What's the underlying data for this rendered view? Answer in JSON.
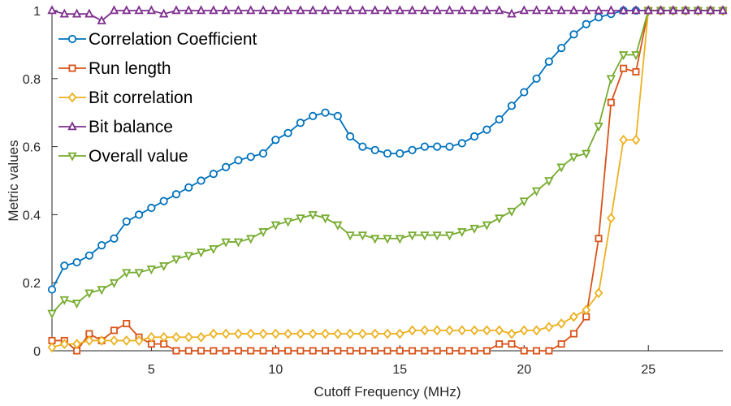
{
  "chart_data": {
    "type": "line",
    "xlabel": "Cutoff Frequency (MHz)",
    "ylabel": "Metric values",
    "xlim": [
      1,
      28
    ],
    "ylim": [
      0,
      1
    ],
    "xticks": [
      5,
      10,
      15,
      20,
      25
    ],
    "xtick_labels": [
      "5",
      "10",
      "15",
      "20",
      "25"
    ],
    "yticks": [
      0,
      0.2,
      0.4,
      0.6,
      0.8,
      1
    ],
    "ytick_labels": [
      "0",
      "0.2",
      "0.4",
      "0.6",
      "0.8",
      "1"
    ],
    "grid": false,
    "legend_position": "top-left",
    "series": [
      {
        "name": "Correlation Coefficient",
        "color": "#0072BD",
        "marker": "circle",
        "x": [
          1,
          1.5,
          2,
          2.5,
          3,
          3.5,
          4,
          4.5,
          5,
          5.5,
          6,
          6.5,
          7,
          7.5,
          8,
          8.5,
          9,
          9.5,
          10,
          10.5,
          11,
          11.5,
          12,
          12.5,
          13,
          13.5,
          14,
          14.5,
          15,
          15.5,
          16,
          16.5,
          17,
          17.5,
          18,
          18.5,
          19,
          19.5,
          20,
          20.5,
          21,
          21.5,
          22,
          22.5,
          23,
          23.5,
          24,
          24.5,
          25,
          25.5,
          26,
          26.5,
          27,
          27.5,
          28
        ],
        "values": [
          0.18,
          0.25,
          0.26,
          0.28,
          0.31,
          0.33,
          0.38,
          0.4,
          0.42,
          0.44,
          0.46,
          0.48,
          0.5,
          0.52,
          0.54,
          0.56,
          0.57,
          0.58,
          0.62,
          0.64,
          0.67,
          0.69,
          0.7,
          0.69,
          0.63,
          0.6,
          0.59,
          0.58,
          0.58,
          0.59,
          0.6,
          0.6,
          0.6,
          0.61,
          0.63,
          0.65,
          0.68,
          0.72,
          0.76,
          0.8,
          0.85,
          0.89,
          0.93,
          0.96,
          0.98,
          0.99,
          1.0,
          1.0,
          1.0,
          1.0,
          1.0,
          1.0,
          1.0,
          1.0,
          1.0
        ]
      },
      {
        "name": "Run length",
        "color": "#D95319",
        "marker": "square",
        "x": [
          1,
          1.5,
          2,
          2.5,
          3,
          3.5,
          4,
          4.5,
          5,
          5.5,
          6,
          6.5,
          7,
          7.5,
          8,
          8.5,
          9,
          9.5,
          10,
          10.5,
          11,
          11.5,
          12,
          12.5,
          13,
          13.5,
          14,
          14.5,
          15,
          15.5,
          16,
          16.5,
          17,
          17.5,
          18,
          18.5,
          19,
          19.5,
          20,
          20.5,
          21,
          21.5,
          22,
          22.5,
          23,
          23.5,
          24,
          24.5,
          25,
          25.5,
          26,
          26.5,
          27,
          27.5,
          28
        ],
        "values": [
          0.03,
          0.03,
          0.0,
          0.05,
          0.03,
          0.06,
          0.08,
          0.04,
          0.02,
          0.02,
          0.0,
          0.0,
          0.0,
          0.0,
          0.0,
          0.0,
          0.0,
          0.0,
          0.0,
          0.0,
          0.0,
          0.0,
          0.0,
          0.0,
          0.0,
          0.0,
          0.0,
          0.0,
          0.0,
          0.0,
          0.0,
          0.0,
          0.0,
          0.0,
          0.0,
          0.0,
          0.02,
          0.02,
          0.0,
          0.0,
          0.0,
          0.02,
          0.05,
          0.1,
          0.33,
          0.73,
          0.83,
          0.82,
          1.0,
          1.0,
          1.0,
          1.0,
          1.0,
          1.0,
          1.0
        ]
      },
      {
        "name": "Bit correlation",
        "color": "#EDB120",
        "marker": "diamond",
        "x": [
          1,
          1.5,
          2,
          2.5,
          3,
          3.5,
          4,
          4.5,
          5,
          5.5,
          6,
          6.5,
          7,
          7.5,
          8,
          8.5,
          9,
          9.5,
          10,
          10.5,
          11,
          11.5,
          12,
          12.5,
          13,
          13.5,
          14,
          14.5,
          15,
          15.5,
          16,
          16.5,
          17,
          17.5,
          18,
          18.5,
          19,
          19.5,
          20,
          20.5,
          21,
          21.5,
          22,
          22.5,
          23,
          23.5,
          24,
          24.5,
          25,
          25.5,
          26,
          26.5,
          27,
          27.5,
          28
        ],
        "values": [
          0.01,
          0.02,
          0.02,
          0.03,
          0.03,
          0.03,
          0.03,
          0.03,
          0.04,
          0.04,
          0.04,
          0.04,
          0.04,
          0.05,
          0.05,
          0.05,
          0.05,
          0.05,
          0.05,
          0.05,
          0.05,
          0.05,
          0.05,
          0.05,
          0.05,
          0.05,
          0.05,
          0.05,
          0.05,
          0.06,
          0.06,
          0.06,
          0.06,
          0.06,
          0.06,
          0.06,
          0.06,
          0.05,
          0.06,
          0.06,
          0.07,
          0.08,
          0.1,
          0.12,
          0.17,
          0.39,
          0.62,
          0.62,
          1.0,
          1.0,
          1.0,
          1.0,
          1.0,
          1.0,
          1.0
        ]
      },
      {
        "name": "Bit balance",
        "color": "#7E2F8E",
        "marker": "triangle-up",
        "x": [
          1,
          1.5,
          2,
          2.5,
          3,
          3.5,
          4,
          4.5,
          5,
          5.5,
          6,
          6.5,
          7,
          7.5,
          8,
          8.5,
          9,
          9.5,
          10,
          10.5,
          11,
          11.5,
          12,
          12.5,
          13,
          13.5,
          14,
          14.5,
          15,
          15.5,
          16,
          16.5,
          17,
          17.5,
          18,
          18.5,
          19,
          19.5,
          20,
          20.5,
          21,
          21.5,
          22,
          22.5,
          23,
          23.5,
          24,
          24.5,
          25,
          25.5,
          26,
          26.5,
          27,
          27.5,
          28
        ],
        "values": [
          1.0,
          0.99,
          0.99,
          0.99,
          0.97,
          1.0,
          1.0,
          1.0,
          1.0,
          0.99,
          1.0,
          1.0,
          1.0,
          1.0,
          1.0,
          1.0,
          1.0,
          1.0,
          1.0,
          1.0,
          1.0,
          1.0,
          1.0,
          1.0,
          1.0,
          1.0,
          1.0,
          1.0,
          1.0,
          1.0,
          1.0,
          1.0,
          1.0,
          1.0,
          1.0,
          1.0,
          1.0,
          0.99,
          1.0,
          1.0,
          1.0,
          1.0,
          1.0,
          1.0,
          1.0,
          1.0,
          1.0,
          1.0,
          1.0,
          1.0,
          1.0,
          1.0,
          1.0,
          1.0,
          1.0
        ]
      },
      {
        "name": "Overall value",
        "color": "#77AC30",
        "marker": "triangle-down",
        "x": [
          1,
          1.5,
          2,
          2.5,
          3,
          3.5,
          4,
          4.5,
          5,
          5.5,
          6,
          6.5,
          7,
          7.5,
          8,
          8.5,
          9,
          9.5,
          10,
          10.5,
          11,
          11.5,
          12,
          12.5,
          13,
          13.5,
          14,
          14.5,
          15,
          15.5,
          16,
          16.5,
          17,
          17.5,
          18,
          18.5,
          19,
          19.5,
          20,
          20.5,
          21,
          21.5,
          22,
          22.5,
          23,
          23.5,
          24,
          24.5,
          25,
          25.5,
          26,
          26.5,
          27,
          27.5,
          28
        ],
        "values": [
          0.11,
          0.15,
          0.14,
          0.17,
          0.18,
          0.2,
          0.23,
          0.23,
          0.24,
          0.25,
          0.27,
          0.28,
          0.29,
          0.3,
          0.32,
          0.32,
          0.33,
          0.35,
          0.37,
          0.38,
          0.39,
          0.4,
          0.39,
          0.37,
          0.34,
          0.34,
          0.33,
          0.33,
          0.33,
          0.34,
          0.34,
          0.34,
          0.34,
          0.35,
          0.36,
          0.37,
          0.39,
          0.41,
          0.44,
          0.47,
          0.5,
          0.54,
          0.57,
          0.58,
          0.66,
          0.8,
          0.87,
          0.87,
          1.0,
          1.0,
          1.0,
          1.0,
          1.0,
          1.0,
          1.0
        ]
      }
    ]
  }
}
